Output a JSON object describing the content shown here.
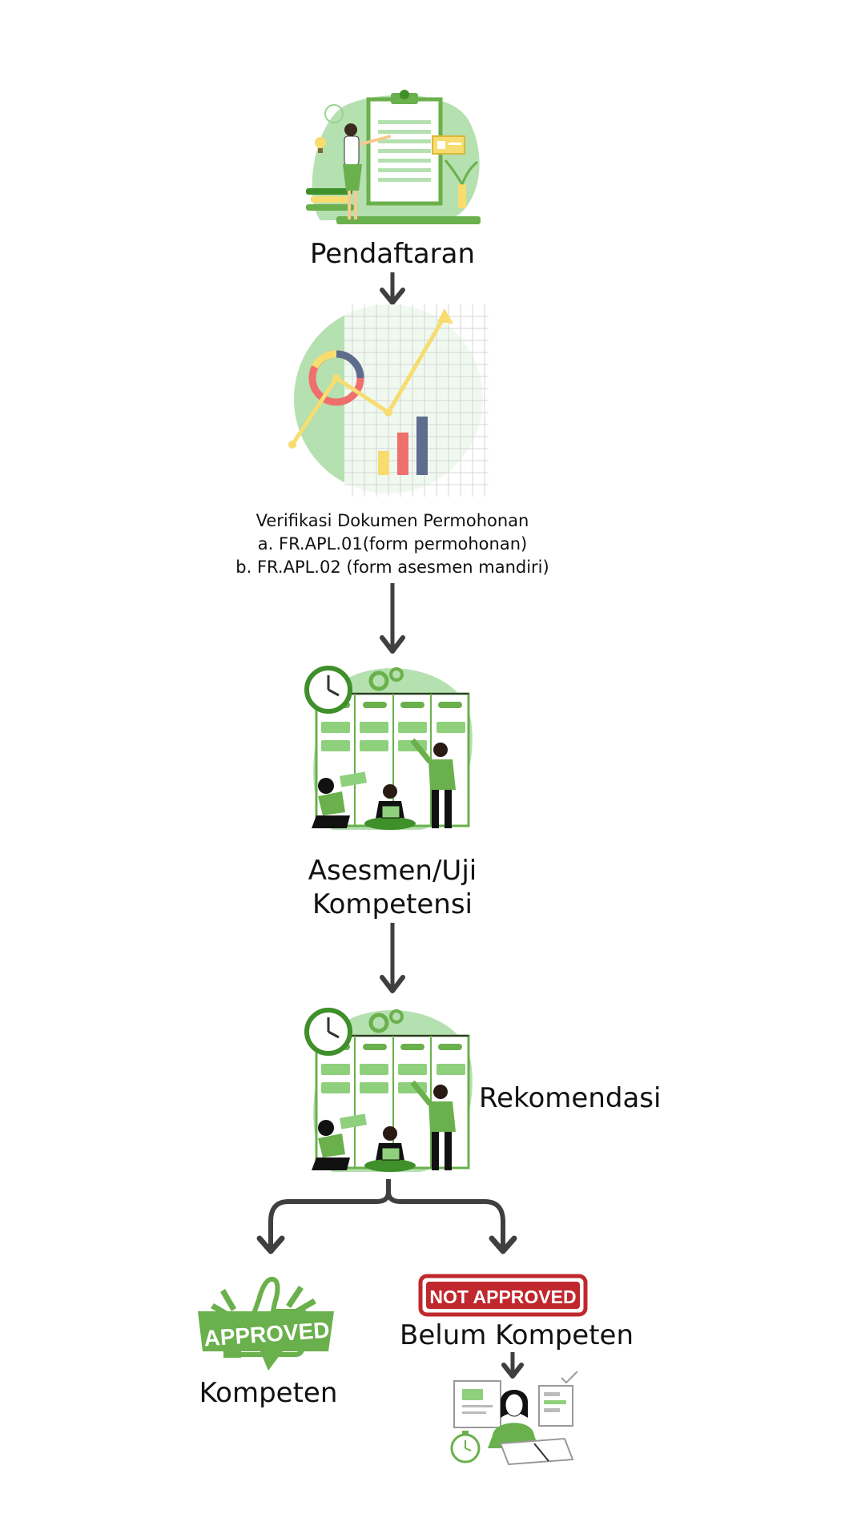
{
  "steps": {
    "registration": "Pendaftaran",
    "verification": {
      "title": "Verifikasi Dokumen Permohonan",
      "item_a": "a. FR.APL.01(form permohonan)",
      "item_b": "b. FR.APL.02 (form asesmen mandiri)"
    },
    "assessment": {
      "line1": "Asesmen/Uji",
      "line2": "Kompetensi"
    },
    "recommendation": "Rekomendasi"
  },
  "outcomes": {
    "approved_stamp": "APPROVED",
    "approved_label": "Kompeten",
    "not_approved_stamp": "NOT APPROVED",
    "not_approved_label": "Belum Kompeten"
  },
  "colors": {
    "green": "#6ab04c",
    "light_green": "#b5e0b0",
    "dark_green": "#3f8f2a",
    "red_stamp": "#c0282e",
    "arrow": "#3f3f3f",
    "yellow": "#f7dc6f",
    "coral": "#ef6f6c",
    "slate": "#5d6d8e"
  }
}
